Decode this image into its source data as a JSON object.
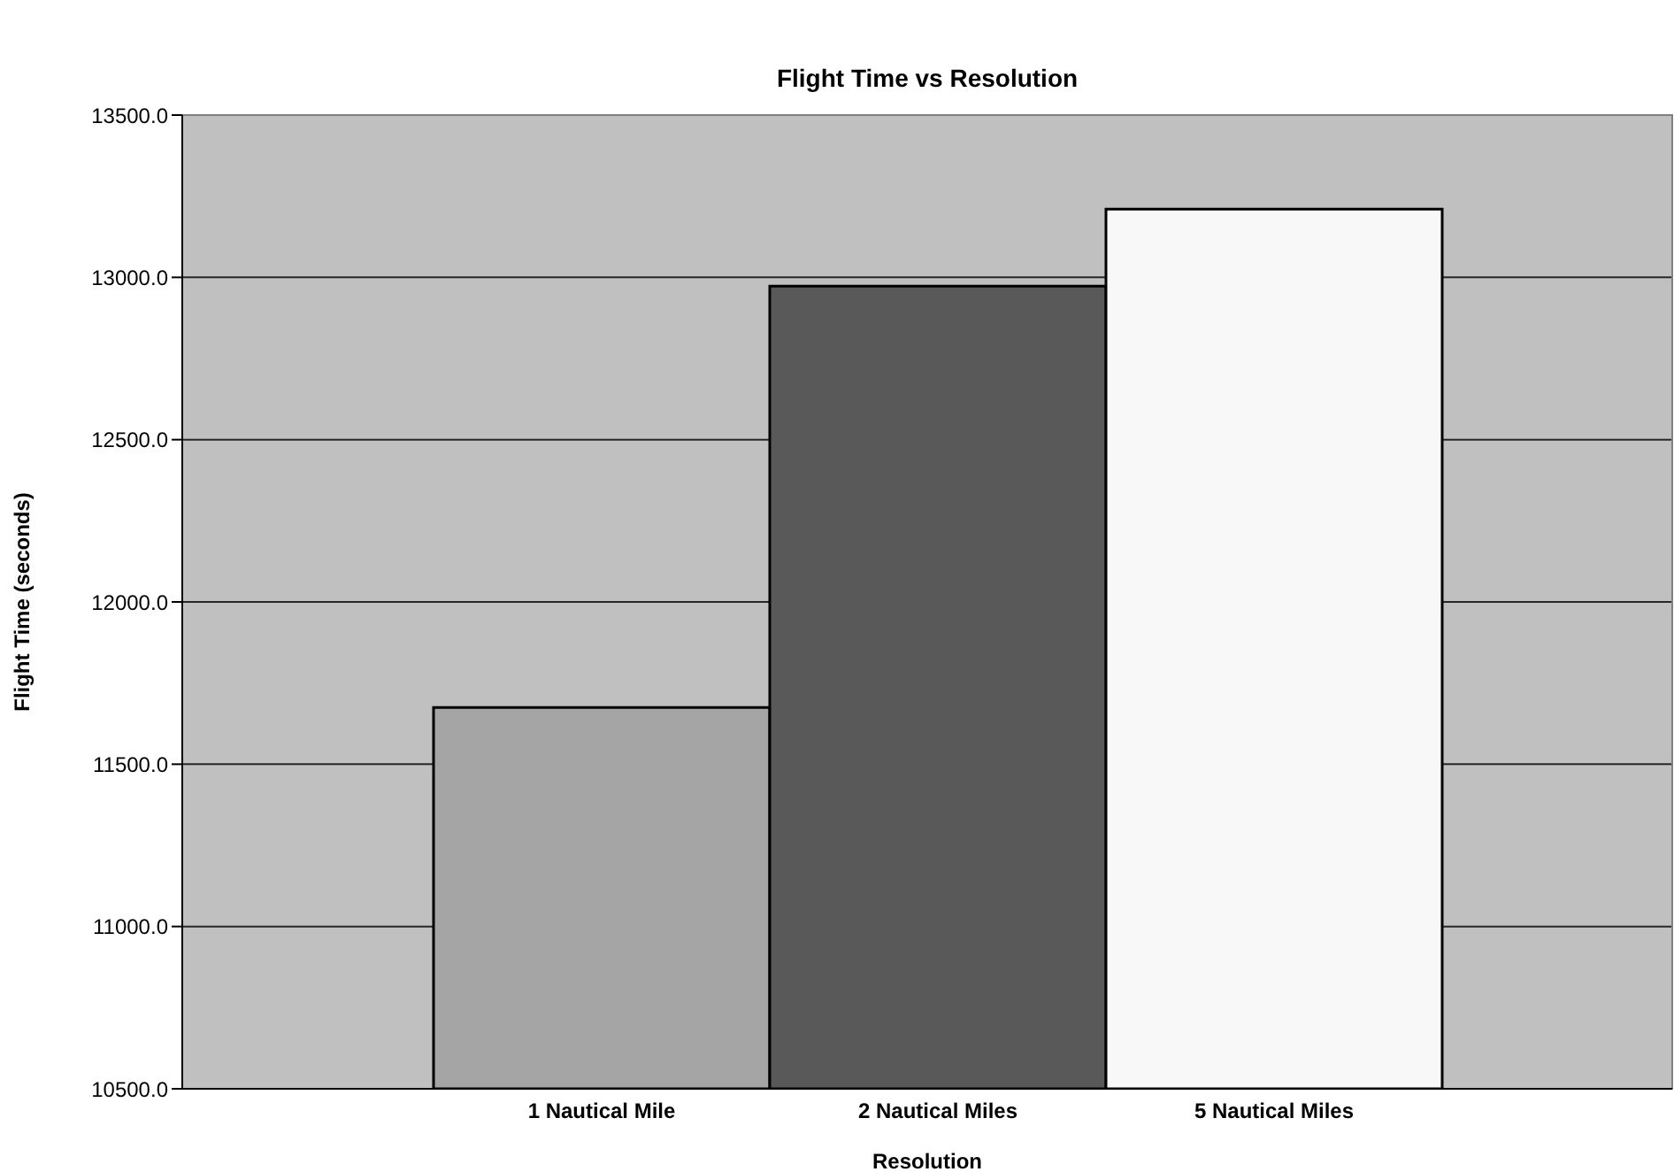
{
  "chart_data": {
    "type": "bar",
    "title": "Flight Time vs Resolution",
    "xlabel": "Resolution",
    "ylabel": "Flight Time (seconds)",
    "categories": [
      "1 Nautical Mile",
      "2 Nautical Miles",
      "5 Nautical Miles"
    ],
    "values": [
      11675,
      12973,
      13210
    ],
    "colors": [
      "#a5a5a5",
      "#595959",
      "#f8f8f8"
    ],
    "ylim": [
      10500,
      13500
    ],
    "yticks": [
      {
        "value": 10500,
        "label": "10500.0"
      },
      {
        "value": 11000,
        "label": "11000.0"
      },
      {
        "value": 11500,
        "label": "11500.0"
      },
      {
        "value": 12000,
        "label": "12000.0"
      },
      {
        "value": 12500,
        "label": "12500.0"
      },
      {
        "value": 13000,
        "label": "13000.0"
      },
      {
        "value": 13500,
        "label": "13500.0"
      }
    ],
    "grid": "y",
    "legend": false
  }
}
